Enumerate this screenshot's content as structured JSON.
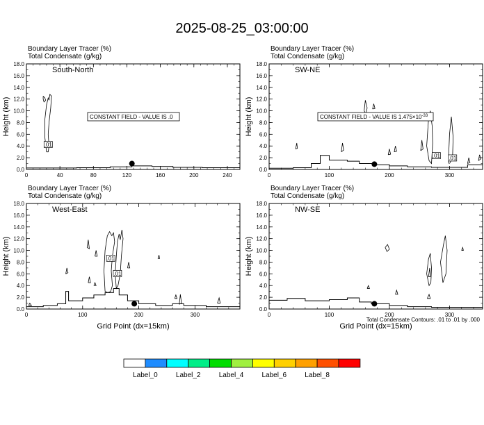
{
  "title": "2025-08-25_03:00:00",
  "header_line1": "Boundary Layer Tracer   (%)",
  "header_line2": "Total Condensate   (g/kg)",
  "footnote": "Total Condensate Contours: .01 to .01 by .000",
  "chart_data": [
    {
      "type": "contour",
      "name": "South-North",
      "xlim": [
        0,
        255
      ],
      "ylim": [
        0,
        18
      ],
      "xticks": [
        0,
        40,
        80,
        120,
        160,
        200,
        240
      ],
      "yticks": [
        0.0,
        2.0,
        4.0,
        6.0,
        8.0,
        10.0,
        12.0,
        14.0,
        16.0,
        18.0
      ],
      "ylabel": "Height (km)",
      "xlabel": "",
      "annotation": "CONSTANT FIELD - VALUE IS .0",
      "contour_label": ".01",
      "marker": {
        "x": 126,
        "y": 1.0
      },
      "terrain": [
        [
          0,
          0.25
        ],
        [
          60,
          0.3
        ],
        [
          100,
          0.45
        ],
        [
          126,
          0.6
        ],
        [
          150,
          0.5
        ],
        [
          175,
          0.35
        ],
        [
          210,
          0.3
        ],
        [
          255,
          0.3
        ]
      ]
    },
    {
      "type": "contour",
      "name": "SW-NE",
      "xlim": [
        0,
        355
      ],
      "ylim": [
        0,
        18
      ],
      "xticks": [
        0,
        100,
        200,
        300
      ],
      "yticks": [
        0.0,
        2.0,
        4.0,
        6.0,
        8.0,
        10.0,
        12.0,
        14.0,
        16.0,
        18.0
      ],
      "ylabel": "Height (km)",
      "xlabel": "",
      "annotation": "CONSTANT FIELD - VALUE IS 1.475×10",
      "annotation_exp": "-33",
      "contour_label": ".01",
      "marker": {
        "x": 175,
        "y": 0.9
      },
      "terrain": [
        [
          0,
          0.2
        ],
        [
          40,
          0.3
        ],
        [
          70,
          1.0
        ],
        [
          85,
          2.4
        ],
        [
          100,
          1.6
        ],
        [
          130,
          1.4
        ],
        [
          150,
          1.0
        ],
        [
          175,
          0.8
        ],
        [
          200,
          0.6
        ],
        [
          230,
          0.45
        ],
        [
          270,
          0.35
        ],
        [
          300,
          0.35
        ],
        [
          330,
          0.8
        ],
        [
          355,
          0.9
        ]
      ]
    },
    {
      "type": "contour",
      "name": "West-East",
      "xlim": [
        0,
        380
      ],
      "ylim": [
        0,
        18
      ],
      "xticks": [
        0,
        100,
        200,
        300
      ],
      "yticks": [
        0.0,
        2.0,
        4.0,
        6.0,
        8.0,
        10.0,
        12.0,
        14.0,
        16.0,
        18.0
      ],
      "ylabel": "Height (km)",
      "xlabel": "Grid Point (dx=15km)",
      "contour_label": ".01",
      "marker": {
        "x": 192,
        "y": 0.9
      },
      "terrain": [
        [
          0,
          0.4
        ],
        [
          30,
          0.6
        ],
        [
          55,
          0.9
        ],
        [
          70,
          3.0
        ],
        [
          75,
          1.4
        ],
        [
          100,
          1.9
        ],
        [
          120,
          2.4
        ],
        [
          140,
          2.8
        ],
        [
          155,
          3.5
        ],
        [
          165,
          2.4
        ],
        [
          180,
          1.4
        ],
        [
          200,
          0.9
        ],
        [
          230,
          0.6
        ],
        [
          260,
          0.9
        ],
        [
          280,
          0.6
        ],
        [
          320,
          0.4
        ],
        [
          380,
          0.4
        ]
      ]
    },
    {
      "type": "contour",
      "name": "NW-SE",
      "xlim": [
        0,
        355
      ],
      "ylim": [
        0,
        18
      ],
      "xticks": [
        0,
        100,
        200,
        300
      ],
      "yticks": [
        0.0,
        2.0,
        4.0,
        6.0,
        8.0,
        10.0,
        12.0,
        14.0,
        16.0,
        18.0
      ],
      "ylabel": "Height (km)",
      "xlabel": "Grid Point (dx=15km)",
      "marker": {
        "x": 175,
        "y": 0.9
      },
      "terrain": [
        [
          0,
          1.5
        ],
        [
          30,
          1.8
        ],
        [
          60,
          1.4
        ],
        [
          100,
          1.6
        ],
        [
          130,
          1.9
        ],
        [
          150,
          1.2
        ],
        [
          170,
          0.9
        ],
        [
          200,
          0.6
        ],
        [
          230,
          0.4
        ],
        [
          270,
          0.3
        ],
        [
          355,
          0.3
        ]
      ]
    }
  ],
  "colorbar": {
    "colors": [
      "#ffffff",
      "#1e8cff",
      "#00ffff",
      "#00ee88",
      "#00dd00",
      "#a0f040",
      "#ffff00",
      "#ffd000",
      "#ffa000",
      "#ff5000",
      "#ff0000"
    ],
    "labels": [
      "Label_0",
      "Label_2",
      "Label_4",
      "Label_6",
      "Label_8"
    ]
  }
}
